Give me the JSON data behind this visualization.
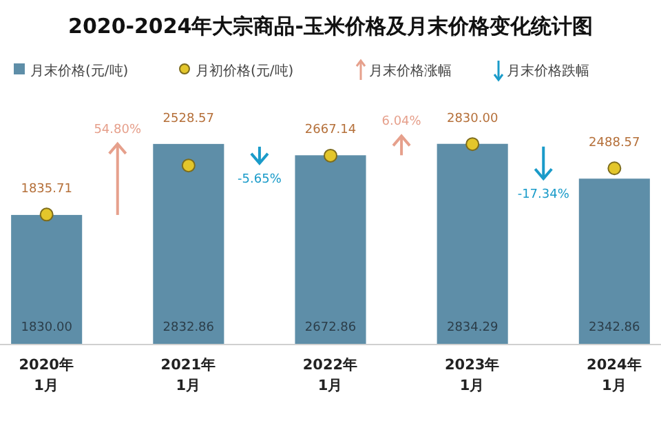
{
  "chart_data": {
    "type": "bar",
    "title": "2020-2024年大宗商品-玉米价格及月末价格变化统计图",
    "categories": [
      "2020年\n1月",
      "2021年\n1月",
      "2022年\n1月",
      "2023年\n1月",
      "2024年\n1月"
    ],
    "series": [
      {
        "name": "月末价格(元/吨)",
        "color": "#5e8ea8",
        "values": [
          1830.0,
          2832.86,
          2672.86,
          2834.29,
          2342.86
        ],
        "value_labels": [
          "1830.00",
          "2832.86",
          "2672.86",
          "2834.29",
          "2342.86"
        ]
      },
      {
        "name": "月初价格(元/吨)",
        "type": "scatter",
        "color": "#e3c62b",
        "values": [
          1835.71,
          2528.57,
          2667.14,
          2830.0,
          2488.57
        ],
        "value_labels": [
          "1835.71",
          "2528.57",
          "2667.14",
          "2830.00",
          "2488.57"
        ]
      }
    ],
    "marker": "circle",
    "legend": "top",
    "annotations": [
      "月末价格涨幅",
      "月末价格跌幅",
      "54.80%",
      "-5.65%",
      "6.04%",
      "-17.34%"
    ]
  }
}
